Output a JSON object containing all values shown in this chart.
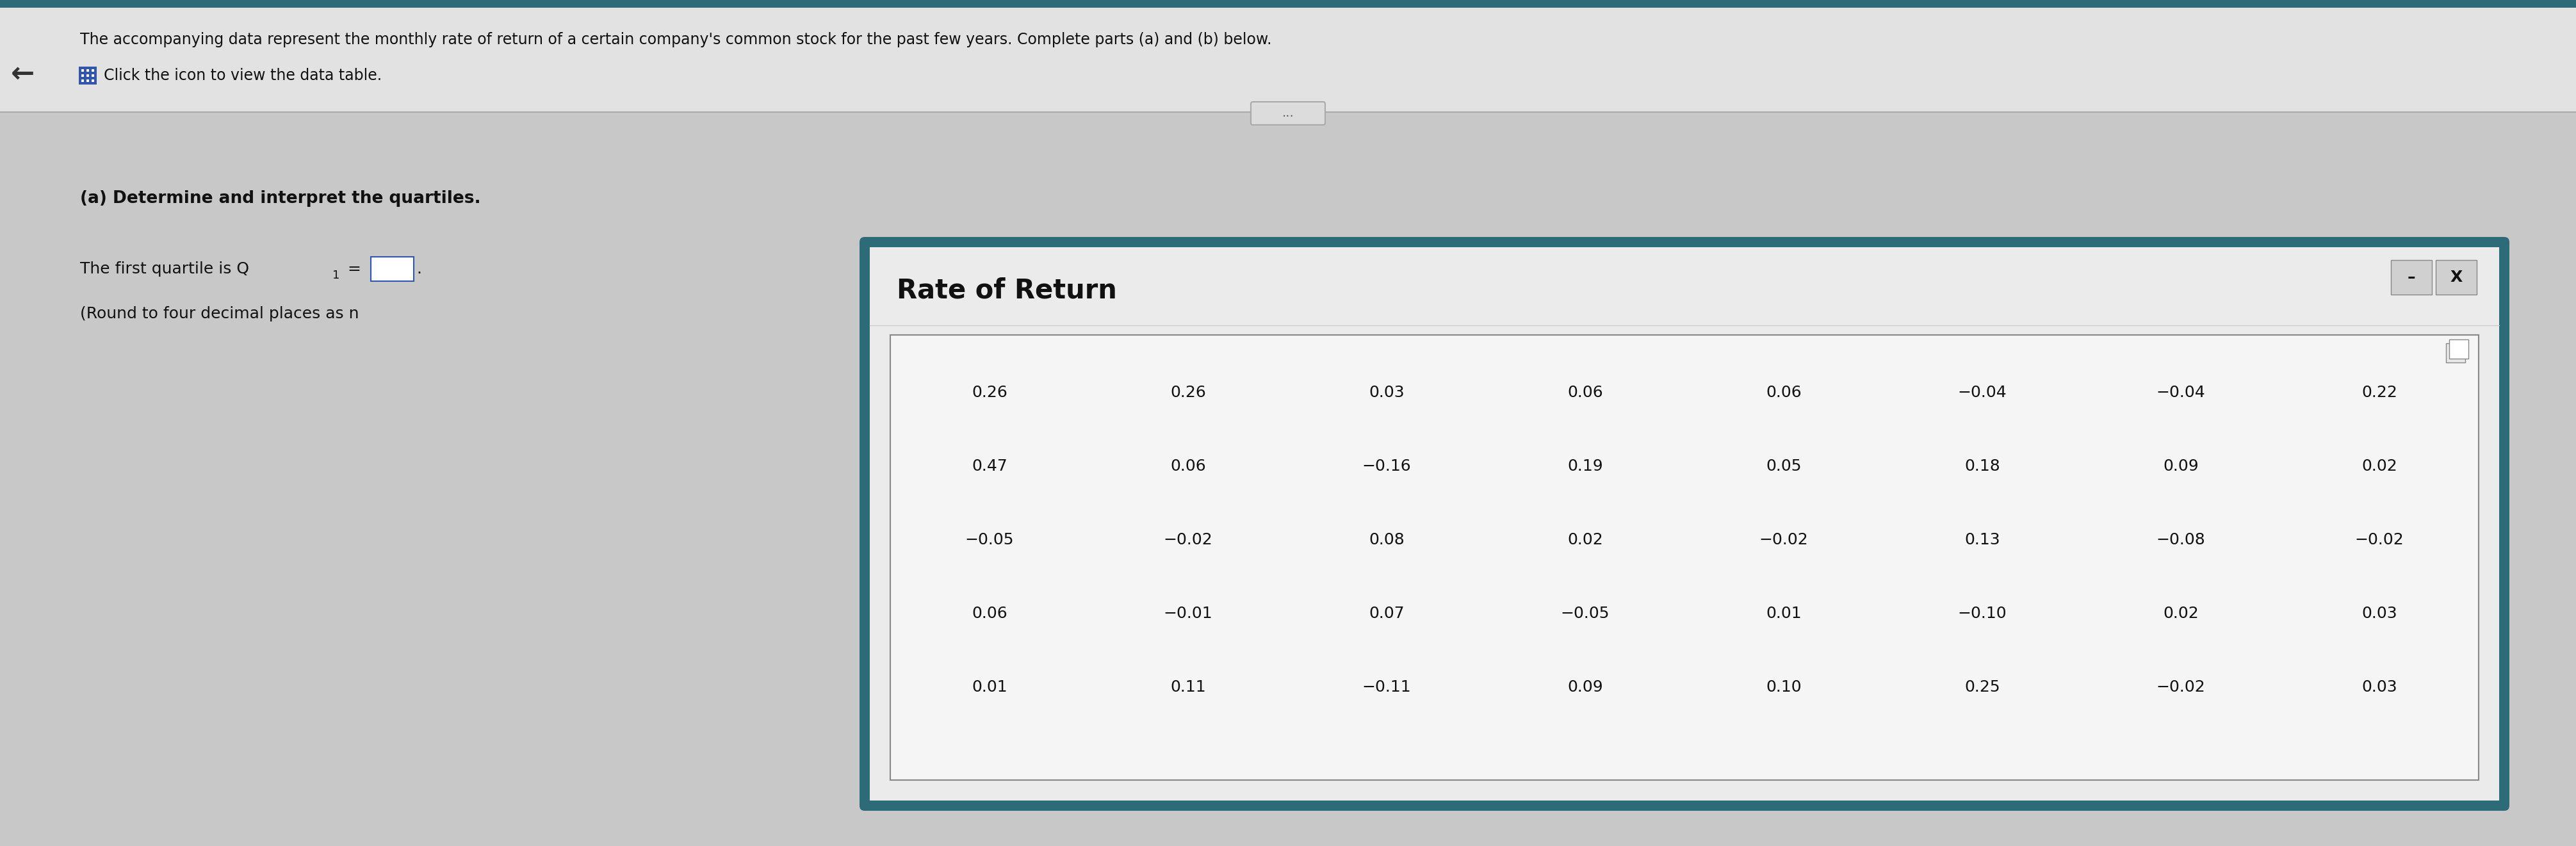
{
  "header_text": "The accompanying data represent the monthly rate of return of a certain company's common stock for the past few years. Complete parts (a) and (b) below.",
  "subheader_text": "Click the icon to view the data table.",
  "part_a_text": "(a) Determine and interpret the quartiles.",
  "quartile_text": "The first quartile is Q",
  "round_text": "(Round to four decimal places as n",
  "dialog_title": "Rate of Return",
  "table_data": [
    [
      "0.26",
      "0.26",
      "0.03",
      "0.06",
      "0.06",
      "−0.04",
      "−0.04",
      "0.22"
    ],
    [
      "0.47",
      "0.06",
      "−0.16",
      "0.19",
      "0.05",
      "0.18",
      "0.09",
      "0.02"
    ],
    [
      "−0.05",
      "−0.02",
      "0.08",
      "0.02",
      "−0.02",
      "0.13",
      "−0.08",
      "−0.02"
    ],
    [
      "0.06",
      "−0.01",
      "0.07",
      "−0.05",
      "0.01",
      "−0.10",
      "0.02",
      "0.03"
    ],
    [
      "0.01",
      "0.11",
      "−0.11",
      "0.09",
      "0.10",
      "0.25",
      "−0.02",
      "0.03"
    ]
  ],
  "bg_color": "#c8c8c8",
  "header_bg": "#e2e2e2",
  "dialog_bg": "#ebebeb",
  "table_bg": "#f5f5f5",
  "text_color": "#111111",
  "dialog_border_color": "#2e6b78",
  "dots_button_text": "...",
  "minimize_text": "–",
  "close_text": "X",
  "arrow_text": "←"
}
